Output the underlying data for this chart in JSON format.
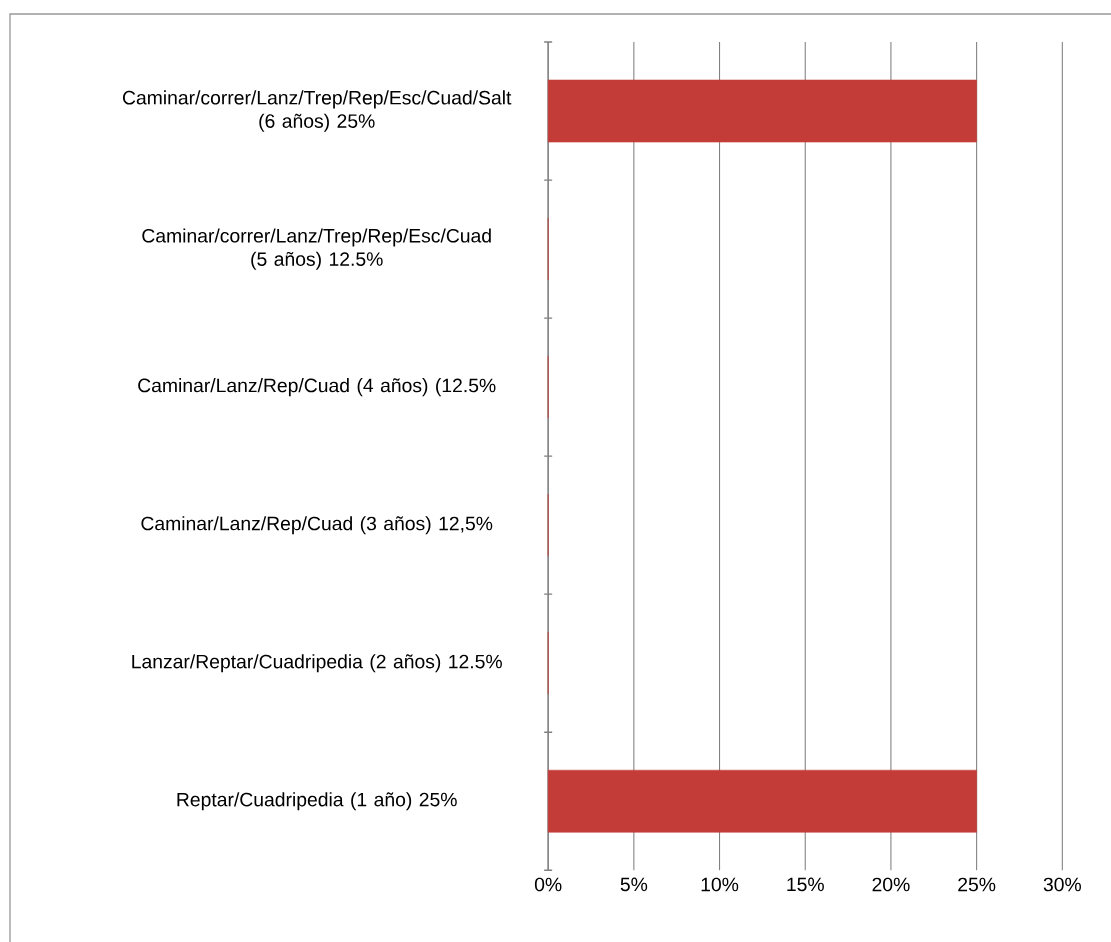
{
  "chart_data": {
    "type": "bar",
    "orientation": "horizontal",
    "categories": [
      "Caminar/correr/Lanz/Trep/Rep/Esc/Cuad/Salt (6 años) 25%",
      "Caminar/correr/Lanz/Trep/Rep/Esc/Cuad (5 años) 12.5%",
      "Caminar/Lanz/Rep/Cuad (4 años) (12.5%",
      "Caminar/Lanz/Rep/Cuad (3 años) 12,5%",
      "Lanzar/Reptar/Cuadripedia (2 años) 12.5%",
      "Reptar/Cuadripedia (1 año) 25%"
    ],
    "values": [
      25,
      0,
      0,
      0,
      0,
      25
    ],
    "color": "#c43c38",
    "xlim": [
      0,
      30
    ],
    "xticks": [
      {
        "value": 0,
        "label": "0%"
      },
      {
        "value": 5,
        "label": "5%"
      },
      {
        "value": 10,
        "label": "10%"
      },
      {
        "value": 15,
        "label": "15%"
      },
      {
        "value": 20,
        "label": "20%"
      },
      {
        "value": 25,
        "label": "25%"
      },
      {
        "value": 30,
        "label": "30%"
      }
    ],
    "grid": "x"
  }
}
